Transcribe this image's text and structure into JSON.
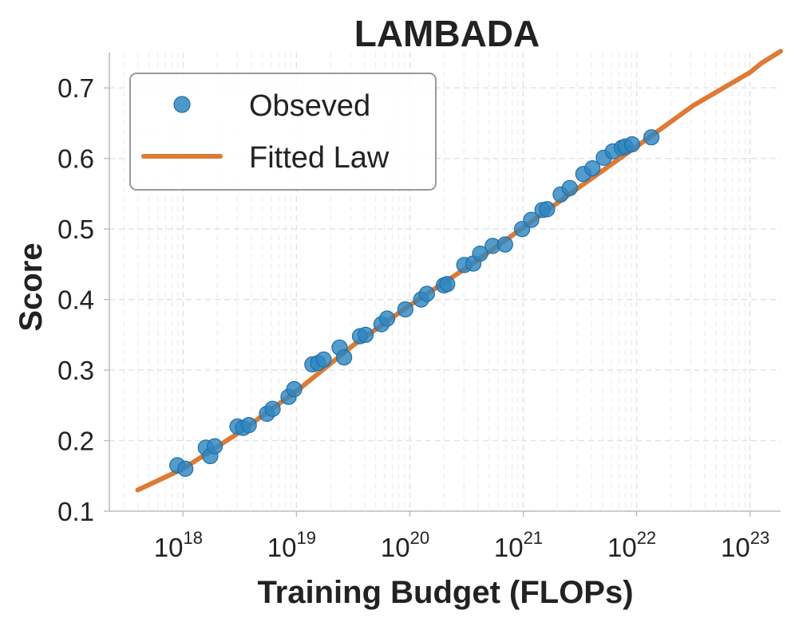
{
  "chart_data": {
    "type": "scatter",
    "title": "LAMBADA",
    "xlabel": "Training Budget (FLOPs)",
    "ylabel": "Score",
    "xscale": "log",
    "xlim_exp": [
      17.35,
      23.27
    ],
    "ylim": [
      0.1,
      0.75
    ],
    "yticks": [
      "0.1",
      "0.2",
      "0.3",
      "0.4",
      "0.5",
      "0.6",
      "0.7"
    ],
    "xticks": [
      {
        "base": "10",
        "exp": "18"
      },
      {
        "base": "10",
        "exp": "19"
      },
      {
        "base": "10",
        "exp": "20"
      },
      {
        "base": "10",
        "exp": "21"
      },
      {
        "base": "10",
        "exp": "22"
      },
      {
        "base": "10",
        "exp": "23"
      }
    ],
    "grid": true,
    "legend": {
      "position": "top-left",
      "entries": [
        {
          "label": "Obseved",
          "kind": "marker"
        },
        {
          "label": "Fitted Law",
          "kind": "line"
        }
      ]
    },
    "colors": {
      "observed": "#2e86c1",
      "observed_edge": "#1f6fa6",
      "fitted": "#dd7a35"
    },
    "series": [
      {
        "name": "Obseved",
        "type": "scatter",
        "points": [
          [
            17.95,
            0.165
          ],
          [
            18.02,
            0.16
          ],
          [
            18.2,
            0.19
          ],
          [
            18.24,
            0.178
          ],
          [
            18.28,
            0.192
          ],
          [
            18.48,
            0.22
          ],
          [
            18.53,
            0.218
          ],
          [
            18.58,
            0.222
          ],
          [
            18.74,
            0.238
          ],
          [
            18.79,
            0.245
          ],
          [
            18.93,
            0.262
          ],
          [
            18.98,
            0.273
          ],
          [
            19.14,
            0.308
          ],
          [
            19.19,
            0.31
          ],
          [
            19.24,
            0.315
          ],
          [
            19.38,
            0.332
          ],
          [
            19.42,
            0.318
          ],
          [
            19.56,
            0.348
          ],
          [
            19.61,
            0.35
          ],
          [
            19.75,
            0.365
          ],
          [
            19.8,
            0.373
          ],
          [
            19.96,
            0.386
          ],
          [
            20.1,
            0.4
          ],
          [
            20.15,
            0.408
          ],
          [
            20.3,
            0.42
          ],
          [
            20.33,
            0.422
          ],
          [
            20.48,
            0.449
          ],
          [
            20.56,
            0.451
          ],
          [
            20.62,
            0.465
          ],
          [
            20.73,
            0.476
          ],
          [
            20.84,
            0.478
          ],
          [
            20.99,
            0.5
          ],
          [
            21.07,
            0.513
          ],
          [
            21.17,
            0.527
          ],
          [
            21.21,
            0.528
          ],
          [
            21.33,
            0.549
          ],
          [
            21.41,
            0.558
          ],
          [
            21.53,
            0.578
          ],
          [
            21.61,
            0.586
          ],
          [
            21.71,
            0.601
          ],
          [
            21.79,
            0.61
          ],
          [
            21.87,
            0.615
          ],
          [
            21.9,
            0.617
          ],
          [
            21.96,
            0.62
          ],
          [
            22.13,
            0.63
          ]
        ]
      },
      {
        "name": "Fitted Law",
        "type": "line",
        "points": [
          [
            17.6,
            0.13
          ],
          [
            18.0,
            0.16
          ],
          [
            18.5,
            0.212
          ],
          [
            19.0,
            0.27
          ],
          [
            19.5,
            0.335
          ],
          [
            20.0,
            0.392
          ],
          [
            20.5,
            0.445
          ],
          [
            21.0,
            0.502
          ],
          [
            21.5,
            0.56
          ],
          [
            22.0,
            0.617
          ],
          [
            22.5,
            0.675
          ],
          [
            23.0,
            0.722
          ],
          [
            23.0,
            0.722
          ],
          [
            23.1,
            0.735
          ],
          [
            23.2,
            0.745
          ],
          [
            23.27,
            0.752
          ]
        ]
      }
    ]
  }
}
